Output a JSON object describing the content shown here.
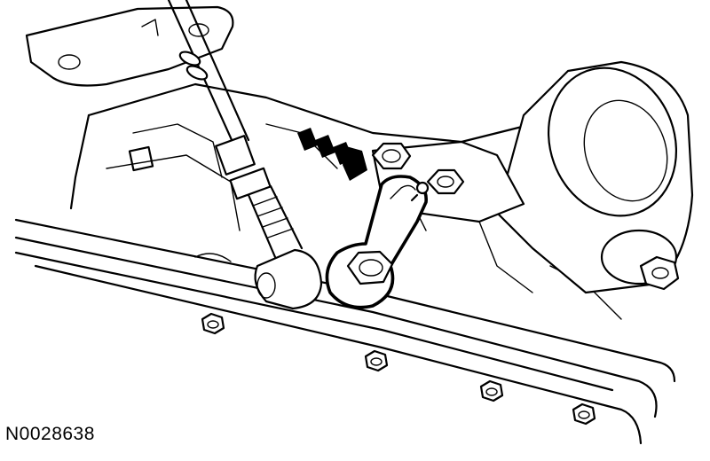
{
  "figure": {
    "id": "N0028638"
  },
  "colors": {
    "line": "#000000",
    "background": "#ffffff"
  }
}
